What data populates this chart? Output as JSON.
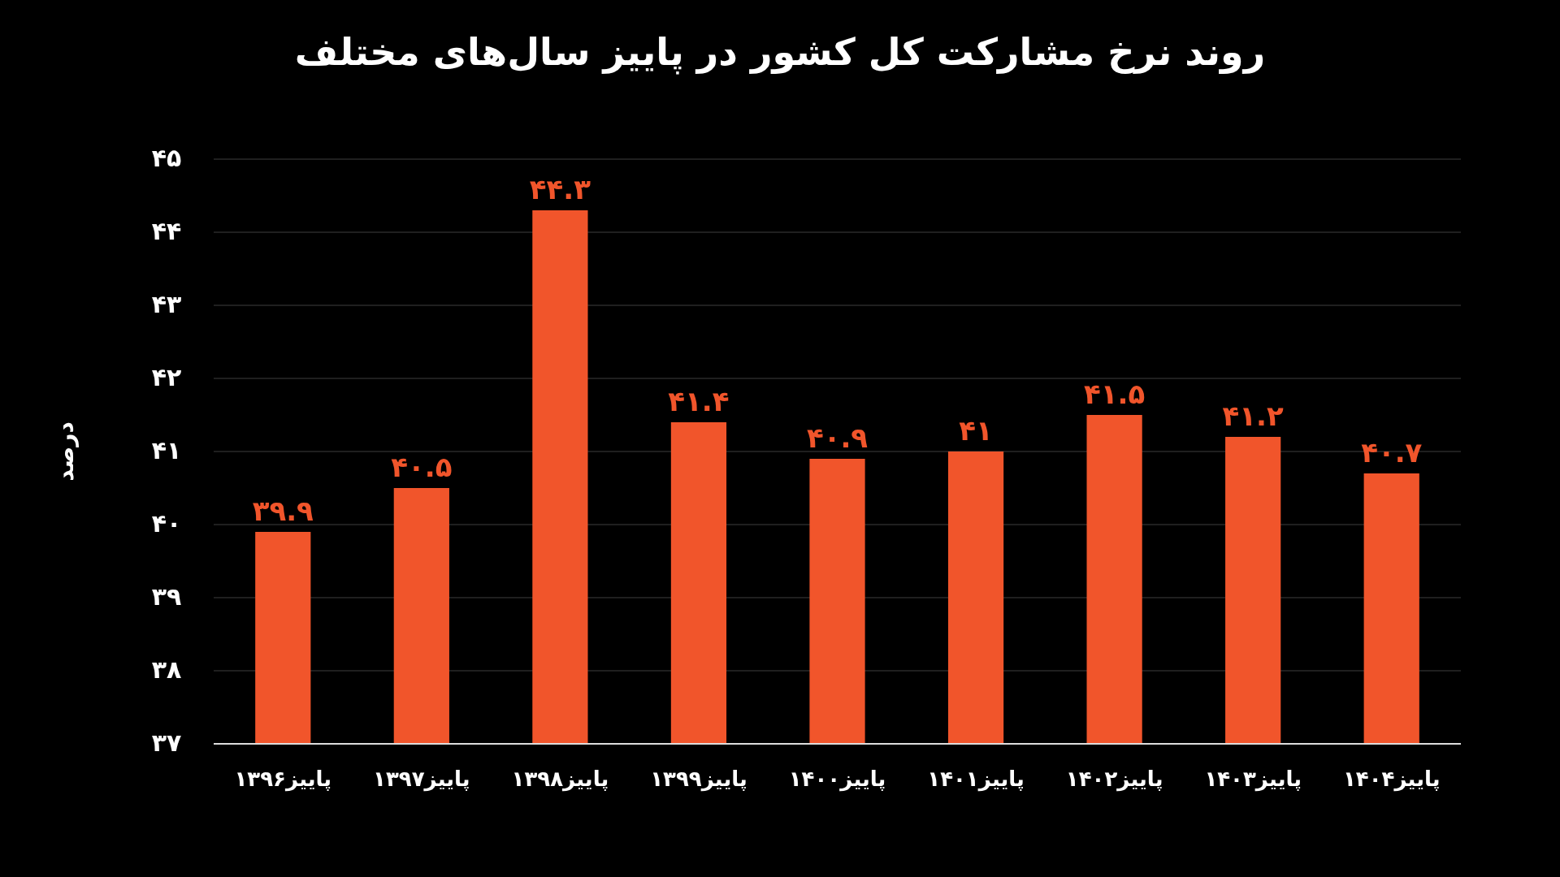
{
  "chart_data": {
    "type": "bar",
    "title": "روند نرخ مشارکت کل کشور در پاییز سال‌های مختلف",
    "ylabel": "درصد",
    "categories": [
      "پاییز۱۳۹۶",
      "پاییز۱۳۹۷",
      "پاییز۱۳۹۸",
      "پاییز۱۳۹۹",
      "پاییز۱۴۰۰",
      "پاییز۱۴۰۱",
      "پاییز۱۴۰۲",
      "پاییز۱۴۰۳",
      "پاییز۱۴۰۴"
    ],
    "values": [
      39.9,
      40.5,
      44.3,
      41.4,
      40.9,
      41,
      41.5,
      41.2,
      40.7
    ],
    "value_labels": [
      "۳۹.۹",
      "۴۰.۵",
      "۴۴.۳",
      "۴۱.۴",
      "۴۰.۹",
      "۴۱",
      "۴۱.۵",
      "۴۱.۲",
      "۴۰.۷"
    ],
    "color": "#f1552b",
    "ylim": [
      37,
      45
    ],
    "yticks": [
      {
        "value": 37,
        "label": "۳۷"
      },
      {
        "value": 38,
        "label": "۳۸"
      },
      {
        "value": 39,
        "label": "۳۹"
      },
      {
        "value": 40,
        "label": "۴۰"
      },
      {
        "value": 41,
        "label": "۴۱"
      },
      {
        "value": 42,
        "label": "۴۲"
      },
      {
        "value": 43,
        "label": "۴۳"
      },
      {
        "value": 44,
        "label": "۴۴"
      },
      {
        "value": 45,
        "label": "۴۵"
      }
    ],
    "grid": "y"
  }
}
